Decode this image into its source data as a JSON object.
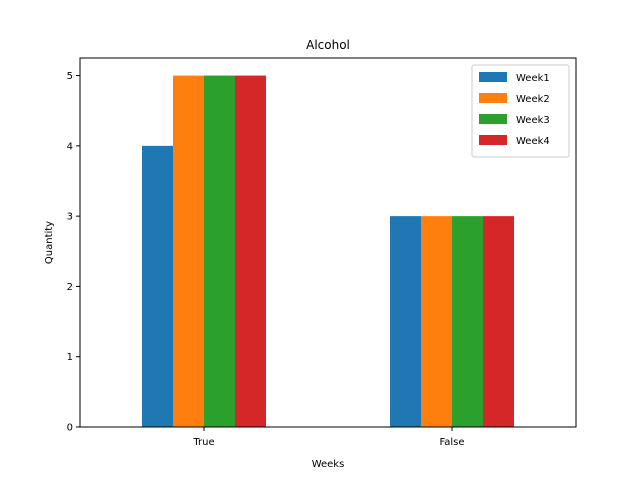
{
  "chart_data": {
    "type": "bar",
    "title": "Alcohol",
    "xlabel": "Weeks",
    "ylabel": "Quantity",
    "categories": [
      "True",
      "False"
    ],
    "ylim": [
      0,
      5.25
    ],
    "yticks": [
      0,
      1,
      2,
      3,
      4,
      5
    ],
    "series": [
      {
        "name": "Week1",
        "color": "#1f77b4",
        "values": [
          4,
          3
        ]
      },
      {
        "name": "Week2",
        "color": "#ff7f0e",
        "values": [
          5,
          3
        ]
      },
      {
        "name": "Week3",
        "color": "#2ca02c",
        "values": [
          5,
          3
        ]
      },
      {
        "name": "Week4",
        "color": "#d62728",
        "values": [
          5,
          3
        ]
      }
    ],
    "legend": "top-right",
    "grid": false
  }
}
